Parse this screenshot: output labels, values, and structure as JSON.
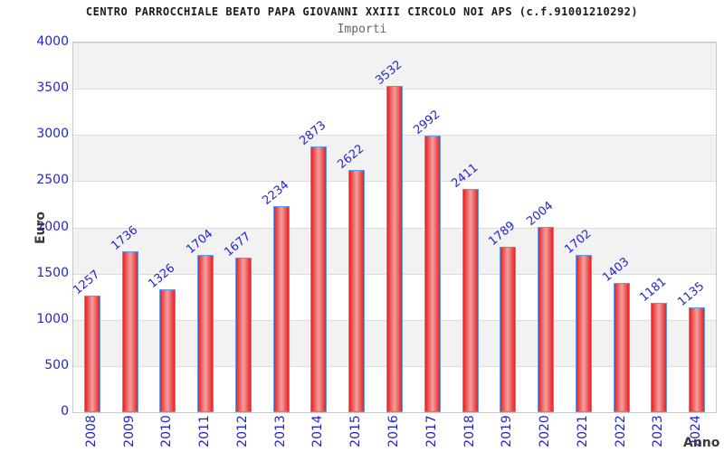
{
  "chart_data": {
    "type": "bar",
    "title": "CENTRO PARROCCHIALE BEATO PAPA GIOVANNI XXIII CIRCOLO NOI APS (c.f.91001210292)",
    "subtitle": "Importi",
    "xlabel": "Anno",
    "ylabel": "Euro",
    "categories": [
      "2008",
      "2009",
      "2010",
      "2011",
      "2012",
      "2013",
      "2014",
      "2015",
      "2016",
      "2017",
      "2018",
      "2019",
      "2020",
      "2021",
      "2022",
      "2023",
      "2024"
    ],
    "values": [
      1257,
      1736,
      1326,
      1704,
      1677,
      2234,
      2873,
      2622,
      3532,
      2992,
      2411,
      1789,
      2004,
      1702,
      1403,
      1181,
      1135
    ],
    "ylim": [
      0,
      4000
    ],
    "ytick_step": 500,
    "ytick_labels": [
      "0",
      "500",
      "1000",
      "1500",
      "2000",
      "2500",
      "3000",
      "3500",
      "4000"
    ],
    "legend_position": "none",
    "grid": "horizontal gridlines with alternating shaded bands",
    "colors": {
      "tick_label": "#2424ce",
      "value_label": "#2424ce",
      "bar_edge_red": "#e82121",
      "bar_center_red": "#f2a1a1",
      "bar_border_blue": "#5b9bf0",
      "band_gray": "#f2f2f2",
      "grid_line": "#dcdcdc",
      "plot_border": "#c9c9c9",
      "title_color": "#1a1a1a",
      "subtitle_color": "#666666",
      "axis_title_color": "#3a3a3a"
    }
  }
}
